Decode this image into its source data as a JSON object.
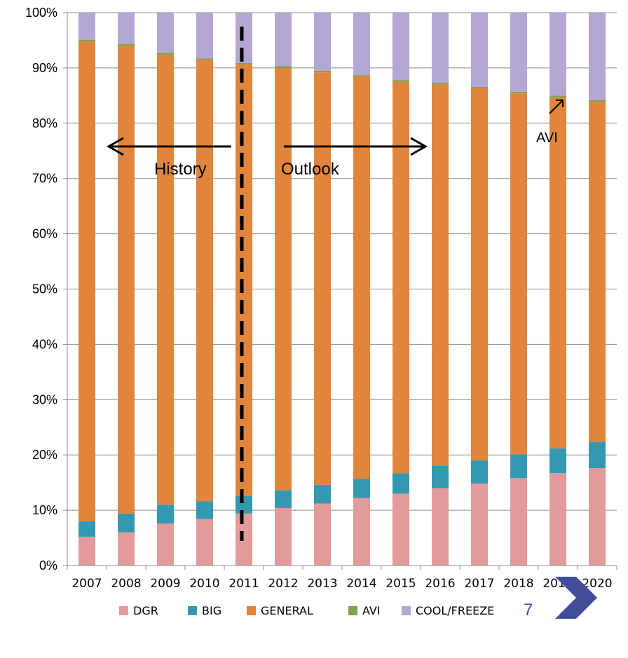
{
  "chart_data": {
    "type": "bar",
    "stacked": true,
    "percent": true,
    "categories": [
      "2007",
      "2008",
      "2009",
      "2010",
      "2011",
      "2012",
      "2013",
      "2014",
      "2015",
      "2016",
      "2017",
      "2018",
      "2019",
      "2020"
    ],
    "series": [
      {
        "name": "DGR",
        "color": "#e39a9a",
        "values": [
          5.2,
          6.0,
          7.6,
          8.4,
          9.4,
          10.4,
          11.2,
          12.2,
          13.0,
          14.0,
          14.8,
          15.8,
          16.7,
          17.6
        ]
      },
      {
        "name": "BIG",
        "color": "#3499b0",
        "values": [
          2.8,
          3.4,
          3.4,
          3.2,
          3.2,
          3.2,
          3.4,
          3.5,
          3.7,
          4.0,
          4.2,
          4.3,
          4.5,
          4.7
        ]
      },
      {
        "name": "GENERAL",
        "color": "#e0853b",
        "values": [
          86.8,
          84.6,
          81.4,
          79.8,
          78.0,
          76.4,
          74.6,
          72.7,
          70.8,
          69.0,
          67.3,
          65.3,
          63.5,
          61.6
        ]
      },
      {
        "name": "AVI",
        "color": "#7ea24e",
        "values": [
          0.3,
          0.3,
          0.3,
          0.3,
          0.3,
          0.3,
          0.3,
          0.3,
          0.3,
          0.3,
          0.3,
          0.3,
          0.3,
          0.3
        ]
      },
      {
        "name": "COOL/FREEZE",
        "color": "#b4a7d4",
        "values": [
          4.9,
          5.7,
          7.3,
          8.3,
          9.1,
          9.7,
          10.5,
          11.3,
          12.2,
          12.7,
          13.4,
          14.3,
          15.0,
          15.8
        ]
      }
    ],
    "y_ticks": [
      "0%",
      "10%",
      "20%",
      "30%",
      "40%",
      "50%",
      "60%",
      "70%",
      "80%",
      "90%",
      "100%"
    ],
    "ylim": [
      0,
      100
    ],
    "grid": true,
    "legend_position": "bottom",
    "divider_after": "2011",
    "annotations": {
      "history": "History",
      "outlook": "Outlook",
      "avi": "AVI"
    }
  },
  "page_number": "7",
  "colors": {
    "next_arrow": "#3f4d9a",
    "page_number": "#3f4d9a"
  }
}
